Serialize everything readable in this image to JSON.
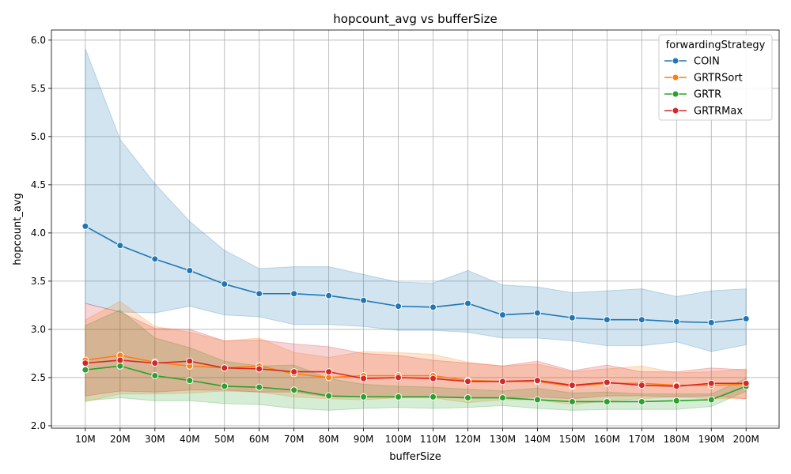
{
  "chart_data": {
    "type": "line",
    "title": "hopcount_avg vs bufferSize",
    "xlabel": "bufferSize",
    "ylabel": "hopcount_avg",
    "categories": [
      "10M",
      "20M",
      "30M",
      "40M",
      "50M",
      "60M",
      "70M",
      "80M",
      "90M",
      "100M",
      "110M",
      "120M",
      "130M",
      "140M",
      "150M",
      "160M",
      "170M",
      "180M",
      "190M",
      "200M"
    ],
    "ylim": [
      1.975,
      6.105
    ],
    "yticks": [
      2.0,
      2.5,
      3.0,
      3.5,
      4.0,
      4.5,
      5.0,
      5.5,
      6.0
    ],
    "ytick_labels": [
      "2.0",
      "2.5",
      "3.0",
      "3.5",
      "4.0",
      "4.5",
      "5.0",
      "5.5",
      "6.0"
    ],
    "grid": true,
    "legend": {
      "title": "forwardingStrategy",
      "position": "top-right"
    },
    "series": [
      {
        "name": "COIN",
        "color": "#1f77b4",
        "values": [
          4.07,
          3.87,
          3.73,
          3.61,
          3.47,
          3.37,
          3.37,
          3.35,
          3.3,
          3.24,
          3.23,
          3.27,
          3.15,
          3.17,
          3.12,
          3.1,
          3.1,
          3.08,
          3.07,
          3.11
        ],
        "lower": [
          3.27,
          3.18,
          3.17,
          3.24,
          3.15,
          3.13,
          3.05,
          3.05,
          3.03,
          2.99,
          2.99,
          2.97,
          2.91,
          2.91,
          2.88,
          2.83,
          2.83,
          2.87,
          2.77,
          2.84
        ],
        "upper": [
          5.91,
          4.97,
          4.51,
          4.12,
          3.82,
          3.63,
          3.65,
          3.65,
          3.57,
          3.49,
          3.48,
          3.61,
          3.46,
          3.44,
          3.38,
          3.4,
          3.42,
          3.34,
          3.4,
          3.42
        ]
      },
      {
        "name": "GRTRSort",
        "color": "#ff7f0e",
        "values": [
          2.68,
          2.73,
          2.66,
          2.62,
          2.6,
          2.62,
          2.54,
          2.5,
          2.52,
          2.52,
          2.52,
          2.47,
          2.46,
          2.46,
          2.41,
          2.44,
          2.44,
          2.42,
          2.42,
          2.43
        ],
        "lower": [
          2.25,
          2.33,
          2.33,
          2.34,
          2.36,
          2.35,
          2.3,
          2.28,
          2.27,
          2.29,
          2.29,
          2.24,
          2.27,
          2.27,
          2.22,
          2.26,
          2.28,
          2.3,
          2.28,
          2.28
        ],
        "upper": [
          3.1,
          3.29,
          3.03,
          2.97,
          2.88,
          2.91,
          2.76,
          2.71,
          2.77,
          2.76,
          2.74,
          2.66,
          2.62,
          2.64,
          2.56,
          2.59,
          2.62,
          2.55,
          2.56,
          2.59
        ]
      },
      {
        "name": "GRTR",
        "color": "#2ca02c",
        "values": [
          2.58,
          2.62,
          2.52,
          2.47,
          2.41,
          2.4,
          2.37,
          2.31,
          2.3,
          2.3,
          2.3,
          2.29,
          2.29,
          2.27,
          2.25,
          2.25,
          2.25,
          2.26,
          2.27,
          2.41
        ],
        "lower": [
          2.26,
          2.29,
          2.26,
          2.26,
          2.23,
          2.22,
          2.18,
          2.16,
          2.18,
          2.19,
          2.18,
          2.19,
          2.21,
          2.18,
          2.16,
          2.17,
          2.17,
          2.17,
          2.2,
          2.36
        ],
        "upper": [
          3.04,
          3.2,
          2.91,
          2.81,
          2.67,
          2.62,
          2.63,
          2.49,
          2.43,
          2.41,
          2.4,
          2.38,
          2.36,
          2.39,
          2.34,
          2.35,
          2.33,
          2.33,
          2.33,
          2.49
        ]
      },
      {
        "name": "GRTRMax",
        "color": "#d62728",
        "values": [
          2.65,
          2.68,
          2.65,
          2.67,
          2.6,
          2.59,
          2.56,
          2.56,
          2.49,
          2.5,
          2.49,
          2.46,
          2.46,
          2.47,
          2.42,
          2.45,
          2.42,
          2.41,
          2.44,
          2.44
        ],
        "lower": [
          2.31,
          2.36,
          2.35,
          2.37,
          2.37,
          2.35,
          2.35,
          2.3,
          2.3,
          2.3,
          2.3,
          2.29,
          2.29,
          2.3,
          2.28,
          2.31,
          2.31,
          2.3,
          2.31,
          2.28
        ],
        "upper": [
          3.27,
          3.18,
          3.01,
          3.0,
          2.88,
          2.89,
          2.85,
          2.82,
          2.75,
          2.73,
          2.68,
          2.65,
          2.62,
          2.67,
          2.57,
          2.63,
          2.56,
          2.56,
          2.6,
          2.58
        ]
      }
    ]
  }
}
